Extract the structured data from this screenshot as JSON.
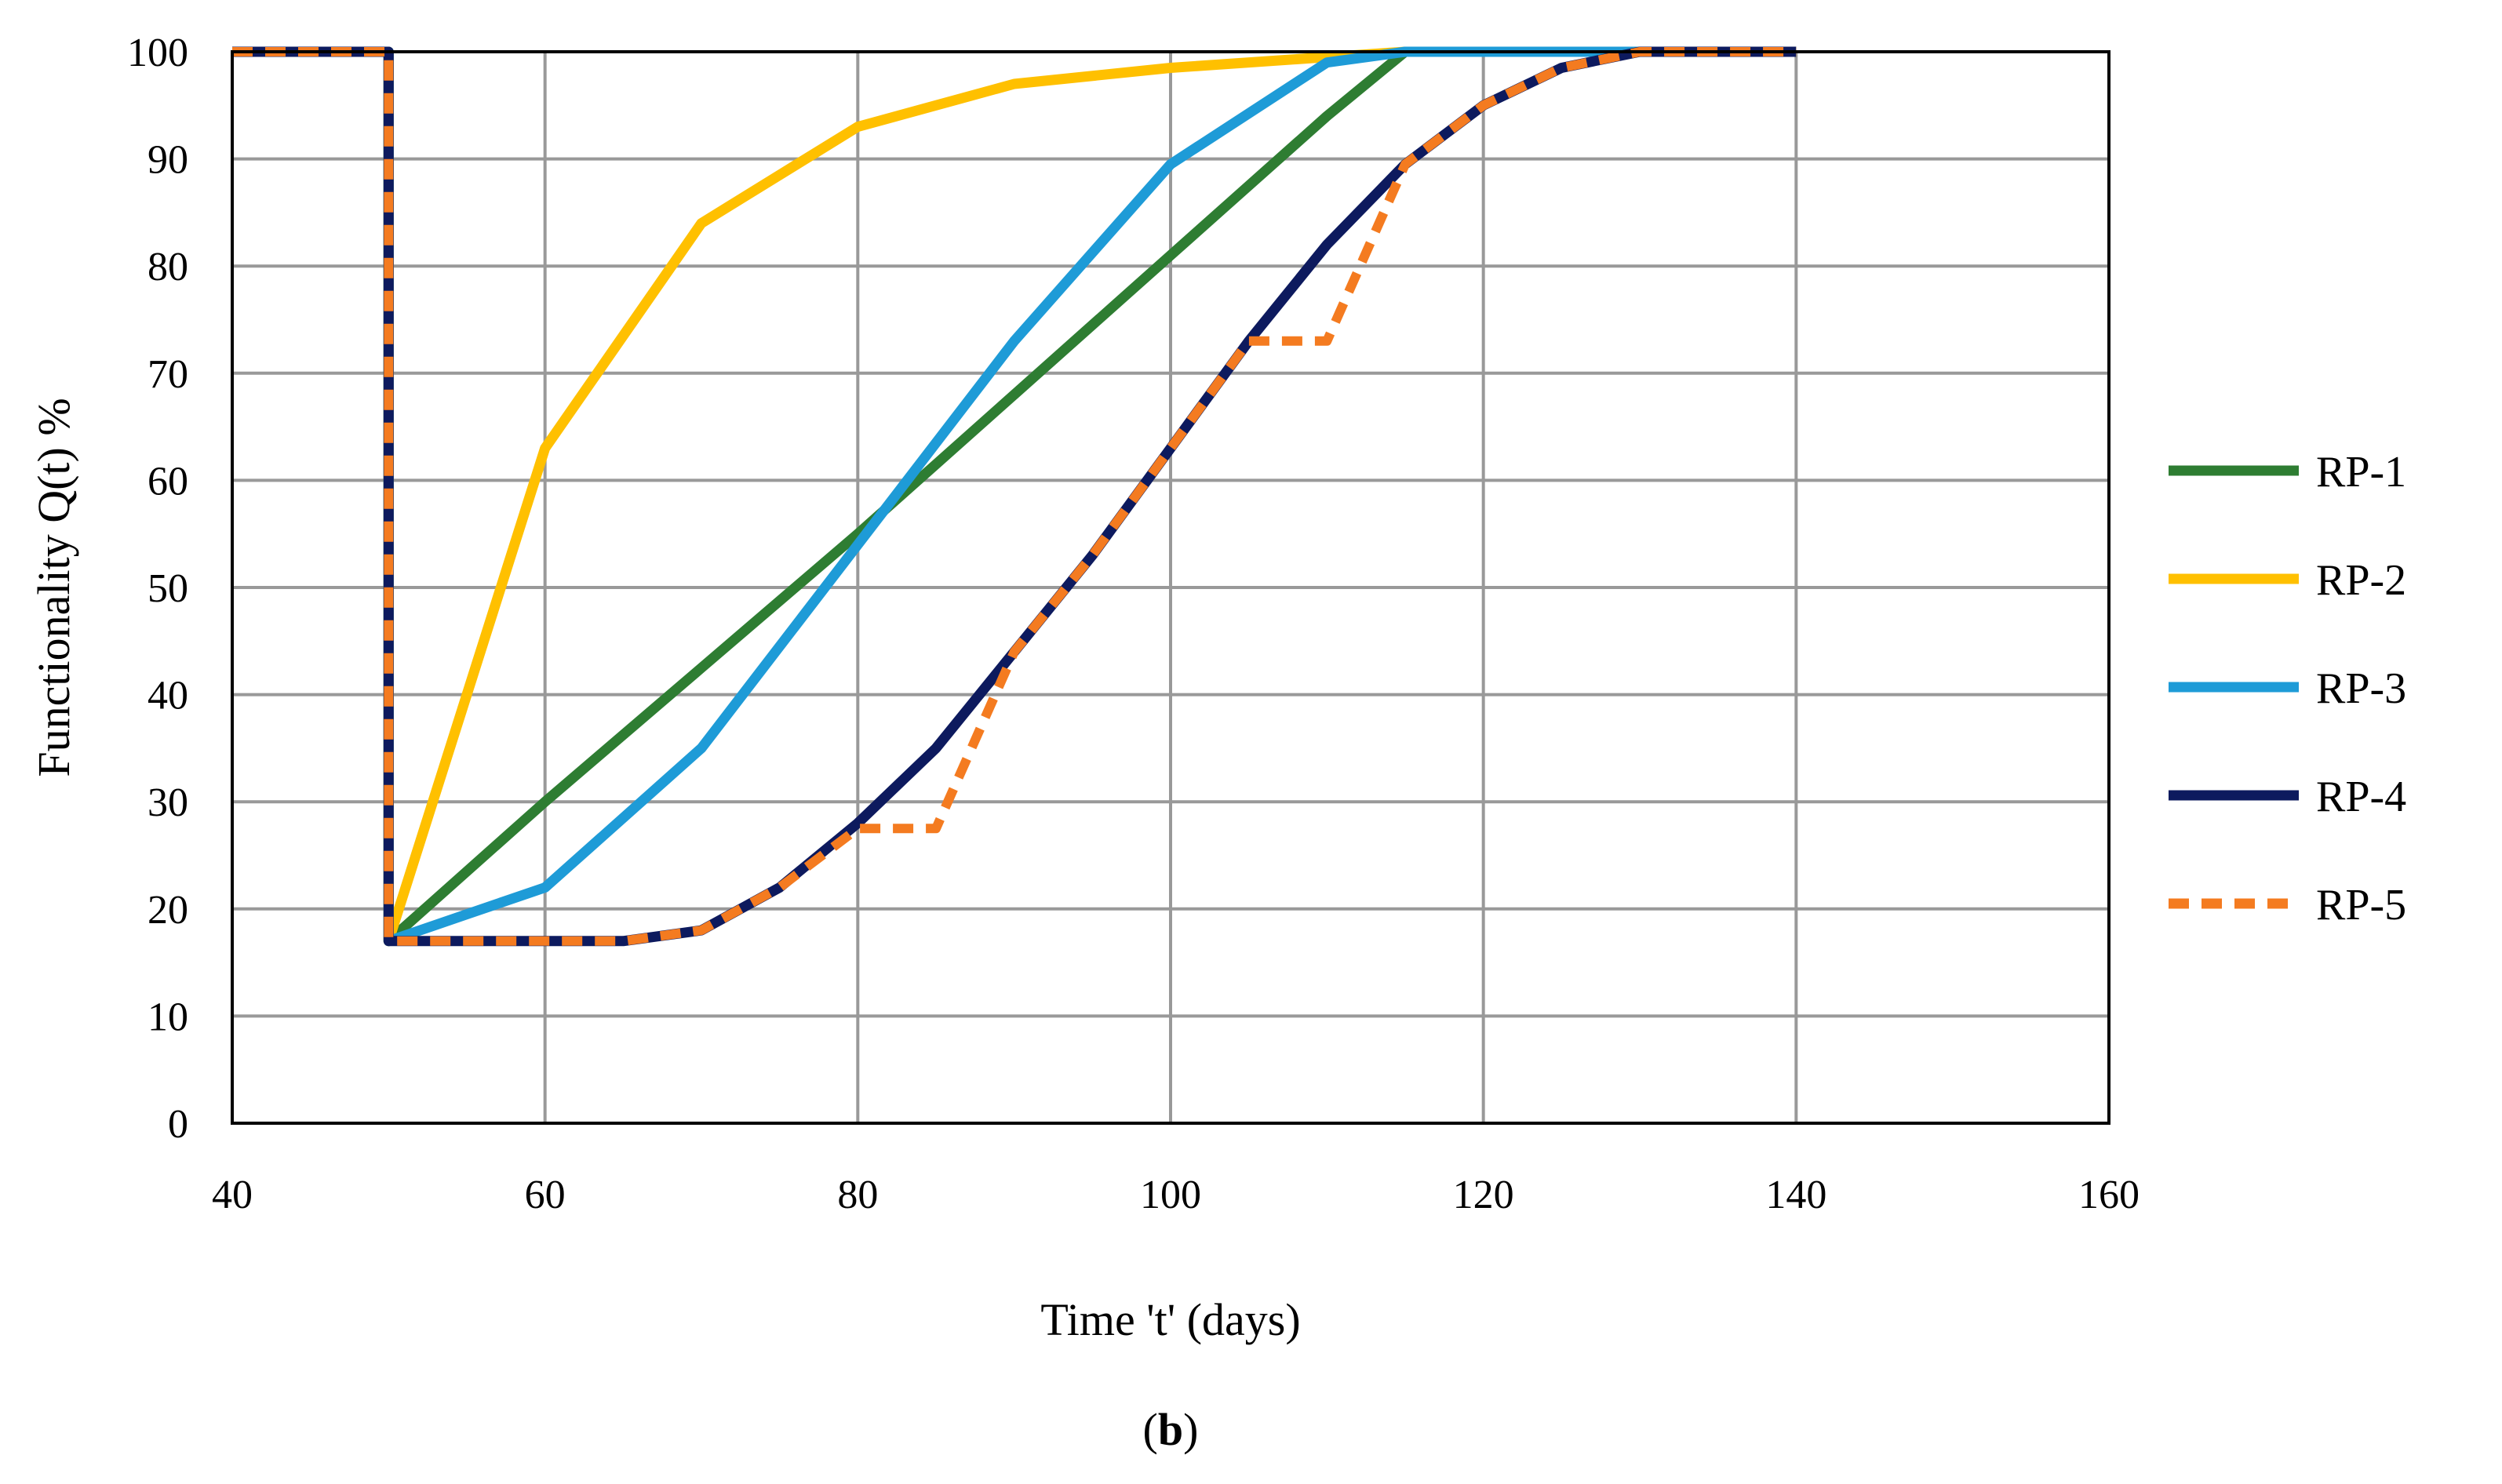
{
  "chart_data": {
    "type": "line",
    "xlabel": "Time 't' (days)",
    "ylabel": "Functionality Q(t) %",
    "xlim": [
      40,
      160
    ],
    "ylim": [
      0,
      100
    ],
    "xticks": [
      40,
      60,
      80,
      100,
      120,
      140,
      160
    ],
    "yticks": [
      0,
      10,
      20,
      30,
      40,
      50,
      60,
      70,
      80,
      90,
      100
    ],
    "grid": true,
    "legend_position": "right",
    "caption_open": "(",
    "caption_label": "b",
    "caption_close": ")",
    "series": [
      {
        "name": "RP-1",
        "color": "#2E7D32",
        "style": "solid",
        "x": [
          40,
          50,
          50,
          60,
          70,
          80,
          90,
          100,
          110,
          115,
          120,
          130,
          140
        ],
        "y": [
          100,
          100,
          17,
          30,
          42.5,
          55,
          68,
          81,
          94,
          100,
          100,
          100,
          100
        ]
      },
      {
        "name": "RP-2",
        "color": "#FFC000",
        "style": "solid",
        "x": [
          40,
          50,
          50,
          60,
          70,
          80,
          90,
          100,
          110,
          115,
          120,
          130,
          140
        ],
        "y": [
          100,
          100,
          17,
          63,
          84,
          93,
          97,
          98.5,
          99.5,
          100,
          100,
          100,
          100
        ]
      },
      {
        "name": "RP-3",
        "color": "#1E9BD7",
        "style": "solid",
        "x": [
          40,
          50,
          50,
          55,
          60,
          70,
          80,
          90,
          100,
          110,
          115,
          120,
          130,
          140
        ],
        "y": [
          100,
          100,
          17,
          19.5,
          22,
          35,
          54,
          73,
          89.5,
          99,
          100,
          100,
          100,
          100
        ]
      },
      {
        "name": "RP-4",
        "color": "#0D1A5E",
        "style": "solid",
        "x": [
          40,
          50,
          50,
          55,
          60,
          65,
          70,
          75,
          80,
          85,
          90,
          95,
          100,
          105,
          110,
          115,
          120,
          125,
          130,
          135,
          140
        ],
        "y": [
          100,
          100,
          17,
          17,
          17,
          17,
          18,
          22,
          28,
          35,
          44,
          53,
          63,
          73,
          82,
          89.5,
          95,
          98.5,
          100,
          100,
          100
        ]
      },
      {
        "name": "RP-5",
        "color": "#F47B20",
        "style": "dashed",
        "x": [
          40,
          50,
          50,
          55,
          60,
          65,
          70,
          75,
          80,
          85,
          90,
          95,
          100,
          105,
          110,
          115,
          120,
          125,
          130,
          135,
          140
        ],
        "y": [
          100,
          100,
          17,
          17,
          17,
          17,
          18,
          22,
          27.5,
          27.5,
          44,
          53,
          63,
          73,
          73,
          89.5,
          95,
          98.5,
          100,
          100,
          100
        ]
      }
    ]
  }
}
